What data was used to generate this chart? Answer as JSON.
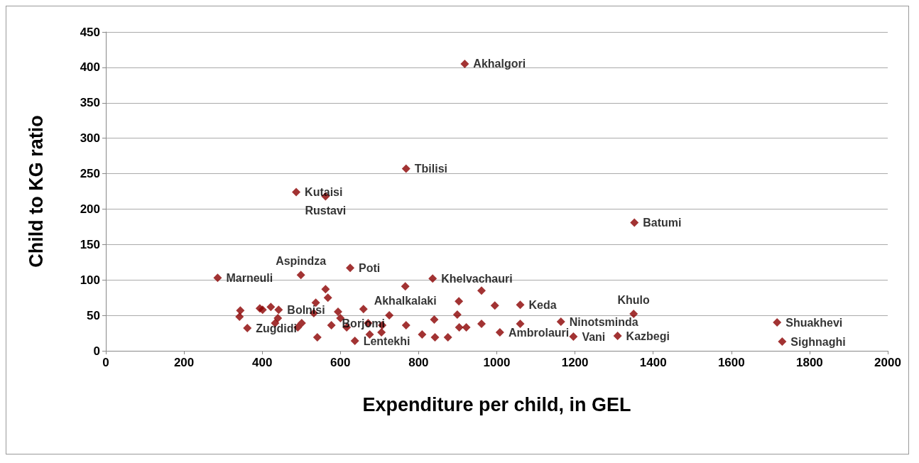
{
  "chart_data": {
    "type": "scatter",
    "xlabel": "Expenditure per child, in GEL",
    "ylabel": "Child to KG ratio",
    "x": [
      918,
      768,
      487,
      562,
      1352,
      625,
      286,
      499,
      836,
      766,
      961,
      442,
      659,
      362,
      637,
      1008,
      1060,
      1164,
      1196,
      1309,
      1350,
      1717,
      1730,
      344,
      342,
      394,
      422,
      401,
      440,
      433,
      491,
      501,
      532,
      537,
      562,
      568,
      594,
      577,
      600,
      616,
      541,
      671,
      675,
      707,
      705,
      725,
      768,
      840,
      809,
      842,
      875,
      903,
      899,
      904,
      922,
      961,
      995,
      1060
    ],
    "values": [
      405,
      257,
      224,
      218,
      181,
      117,
      103,
      107,
      102,
      91,
      85,
      58,
      59,
      32,
      14,
      26,
      65,
      41,
      20,
      21,
      52,
      40,
      13,
      57,
      48,
      60,
      62,
      58,
      46,
      39,
      33,
      39,
      53,
      68,
      87,
      75,
      55,
      36,
      46,
      33,
      19,
      39,
      23,
      36,
      26,
      50,
      36,
      44,
      23,
      19,
      19,
      70,
      51,
      33,
      33,
      38,
      64,
      38
    ],
    "color": "#8b0000",
    "marker": "diamond",
    "annotations": [
      {
        "text": "Akhalgori",
        "x": 918,
        "y": 405
      },
      {
        "text": "Tbilisi",
        "x": 768,
        "y": 257
      },
      {
        "text": "Kutaisi",
        "x": 487,
        "y": 224
      },
      {
        "text": "Rustavi",
        "x": 562,
        "y": 218
      },
      {
        "text": "Batumi",
        "x": 1352,
        "y": 181
      },
      {
        "text": "Poti",
        "x": 625,
        "y": 117
      },
      {
        "text": "Marneuli",
        "x": 286,
        "y": 103
      },
      {
        "text": "Aspindza",
        "x": 499,
        "y": 107
      },
      {
        "text": "Khelvachauri",
        "x": 836,
        "y": 102
      },
      {
        "text": "Akhalkalaki",
        "x": 766,
        "y": 91
      },
      {
        "text": "Bolnisi",
        "x": 442,
        "y": 58
      },
      {
        "text": "Borjomi",
        "x": 659,
        "y": 59
      },
      {
        "text": "Zugdidi",
        "x": 362,
        "y": 32
      },
      {
        "text": "Lentekhi",
        "x": 637,
        "y": 14
      },
      {
        "text": "Ambrolauri",
        "x": 1008,
        "y": 26
      },
      {
        "text": "Keda",
        "x": 1060,
        "y": 65
      },
      {
        "text": "Ninotsminda",
        "x": 1164,
        "y": 41
      },
      {
        "text": "Vani",
        "x": 1196,
        "y": 20
      },
      {
        "text": "Kazbegi",
        "x": 1309,
        "y": 21
      },
      {
        "text": "Khulo",
        "x": 1350,
        "y": 52
      },
      {
        "text": "Shuakhevi",
        "x": 1717,
        "y": 40
      },
      {
        "text": "Sighnaghi",
        "x": 1730,
        "y": 13
      }
    ],
    "xlim": [
      0,
      2000
    ],
    "xticks": [
      0,
      200,
      400,
      600,
      800,
      1000,
      1200,
      1400,
      1600,
      1800,
      2000
    ],
    "ylim": [
      0,
      450
    ],
    "yticks": [
      0,
      50,
      100,
      150,
      200,
      250,
      300,
      350,
      400,
      450
    ],
    "grid": "y"
  }
}
